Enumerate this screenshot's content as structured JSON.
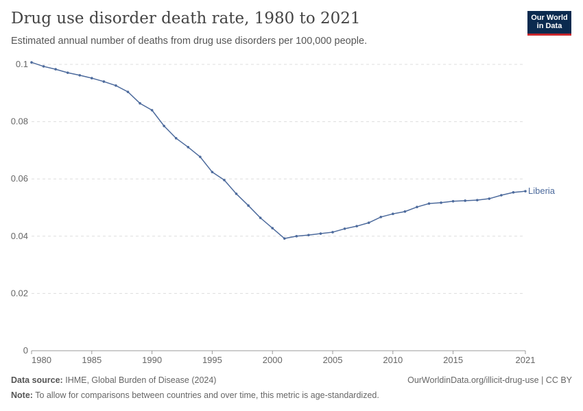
{
  "header": {
    "title": "Drug use disorder death rate, 1980 to 2021",
    "subtitle": "Estimated annual number of deaths from drug use disorders per 100,000 people.",
    "logo": "Our World in Data"
  },
  "footer": {
    "source_label": "Data source:",
    "source": "IHME, Global Burden of Disease (2024)",
    "url": "OurWorldinData.org/illicit-drug-use | CC BY",
    "note_label": "Note:",
    "note": "To allow for comparisons between countries and over time, this metric is age-standardized."
  },
  "chart_data": {
    "type": "line",
    "title": "Drug use disorder death rate, 1980 to 2021",
    "xlabel": "",
    "ylabel": "",
    "xlim": [
      1980,
      2021
    ],
    "ylim": [
      0,
      0.1
    ],
    "grid": "horizontal dashed",
    "legend": "inline-right",
    "x_ticks": [
      "1980",
      "1985",
      "1990",
      "1995",
      "2000",
      "2005",
      "2010",
      "2015",
      "2021"
    ],
    "y_ticks": [
      "0",
      "0.02",
      "0.04",
      "0.06",
      "0.08",
      "0.1"
    ],
    "color": "#4c6a9c",
    "x": [
      1980,
      1981,
      1982,
      1983,
      1984,
      1985,
      1986,
      1987,
      1988,
      1989,
      1990,
      1991,
      1992,
      1993,
      1994,
      1995,
      1996,
      1997,
      1998,
      1999,
      2000,
      2001,
      2002,
      2003,
      2004,
      2005,
      2006,
      2007,
      2008,
      2009,
      2010,
      2011,
      2012,
      2013,
      2014,
      2015,
      2016,
      2017,
      2018,
      2019,
      2020,
      2021
    ],
    "series": [
      {
        "name": "Liberia",
        "values": [
          0.1007,
          0.0993,
          0.0983,
          0.0971,
          0.0962,
          0.0952,
          0.094,
          0.0926,
          0.0904,
          0.0864,
          0.084,
          0.0785,
          0.0742,
          0.0711,
          0.0677,
          0.0624,
          0.0596,
          0.0548,
          0.0507,
          0.0464,
          0.0428,
          0.0392,
          0.04,
          0.0404,
          0.0409,
          0.0414,
          0.0426,
          0.0435,
          0.0447,
          0.0467,
          0.0478,
          0.0486,
          0.0502,
          0.0514,
          0.0517,
          0.0522,
          0.0524,
          0.0526,
          0.0531,
          0.0543,
          0.0553,
          0.0557
        ]
      }
    ]
  }
}
